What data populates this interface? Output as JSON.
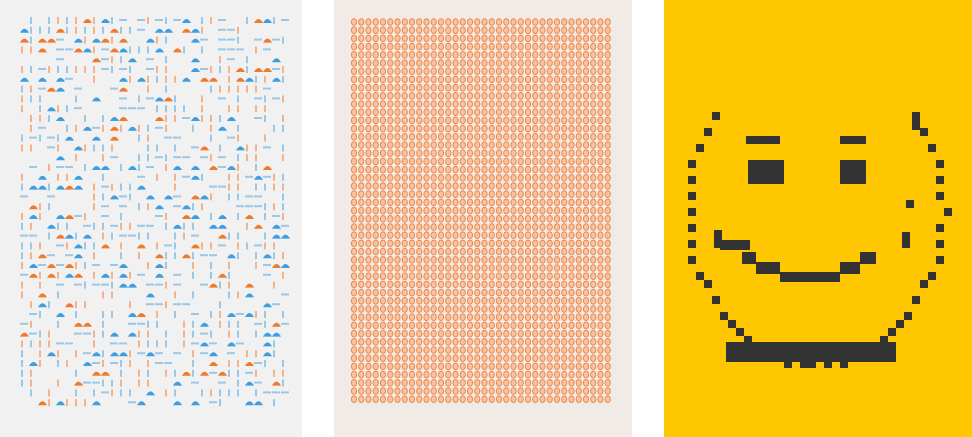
{
  "panels": [
    {
      "id": "glyph-pattern-panel",
      "background": "#f1f1f1",
      "colors": {
        "blue": "#3f9ee0",
        "orange": "#f07a2c",
        "light-blue": "#9cc8e8",
        "light-orange": "#f3b48c"
      }
    },
    {
      "id": "oval-grid-panel",
      "background": "#f0ebe6",
      "colors": {
        "ring": "#f0874a",
        "fill": "#f7c3a3"
      }
    },
    {
      "id": "pixel-smiley-panel",
      "background": "#ffc700",
      "colors": {
        "pixel": "#333333"
      }
    }
  ]
}
